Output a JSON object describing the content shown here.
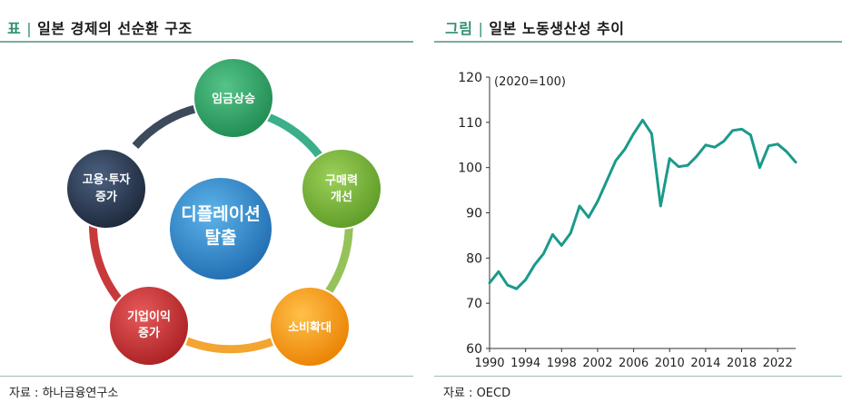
{
  "left_panel": {
    "title_tag": "표",
    "title_sep": "|",
    "title_text": "일본 경제의 선순환 구조",
    "center_line1": "디플레이션",
    "center_line2": "탈출",
    "nodes": [
      {
        "line1": "임금상승",
        "line2": "",
        "color": "#33a467"
      },
      {
        "line1": "구매력",
        "line2": "개선",
        "color": "#78b23a"
      },
      {
        "line1": "소비확대",
        "line2": "",
        "color": "#f29b1a"
      },
      {
        "line1": "기업이익",
        "line2": "증가",
        "color": "#cc3030"
      },
      {
        "line1": "고용·투자",
        "line2": "증가",
        "color": "#27384f"
      }
    ],
    "source": "자료 : 하나금융연구소"
  },
  "right_panel": {
    "title_tag": "그림",
    "title_sep": "|",
    "title_text": "일본 노동생산성 추이",
    "source": "자료 : OECD"
  },
  "chart_data": {
    "type": "line",
    "title": "일본 노동생산성 추이",
    "unit_label": "(2020=100)",
    "xlabel": "",
    "ylabel": "",
    "ylim": [
      60,
      120
    ],
    "yticks": [
      "60",
      "70",
      "80",
      "90",
      "100",
      "110",
      "120"
    ],
    "xlim": [
      1990,
      2024
    ],
    "xticks": [
      "1990",
      "1994",
      "1998",
      "2002",
      "2006",
      "2010",
      "2014",
      "2018",
      "2022"
    ],
    "color": "#1a9a8a",
    "x": [
      1990,
      1991,
      1992,
      1993,
      1994,
      1995,
      1996,
      1997,
      1998,
      1999,
      2000,
      2001,
      2002,
      2003,
      2004,
      2005,
      2006,
      2007,
      2008,
      2009,
      2010,
      2011,
      2012,
      2013,
      2014,
      2015,
      2016,
      2017,
      2018,
      2019,
      2020,
      2021,
      2022,
      2023,
      2024
    ],
    "y": [
      74.5,
      77,
      74,
      73.2,
      75.2,
      78.5,
      81,
      85.2,
      82.8,
      85.5,
      91.5,
      89,
      92.5,
      97,
      101.5,
      104,
      107.5,
      110.5,
      107.5,
      91.5,
      102,
      100.2,
      100.5,
      102.5,
      105,
      104.5,
      105.8,
      108.2,
      108.5,
      107.2,
      100,
      104.8,
      105.2,
      103.5,
      101.2
    ]
  }
}
